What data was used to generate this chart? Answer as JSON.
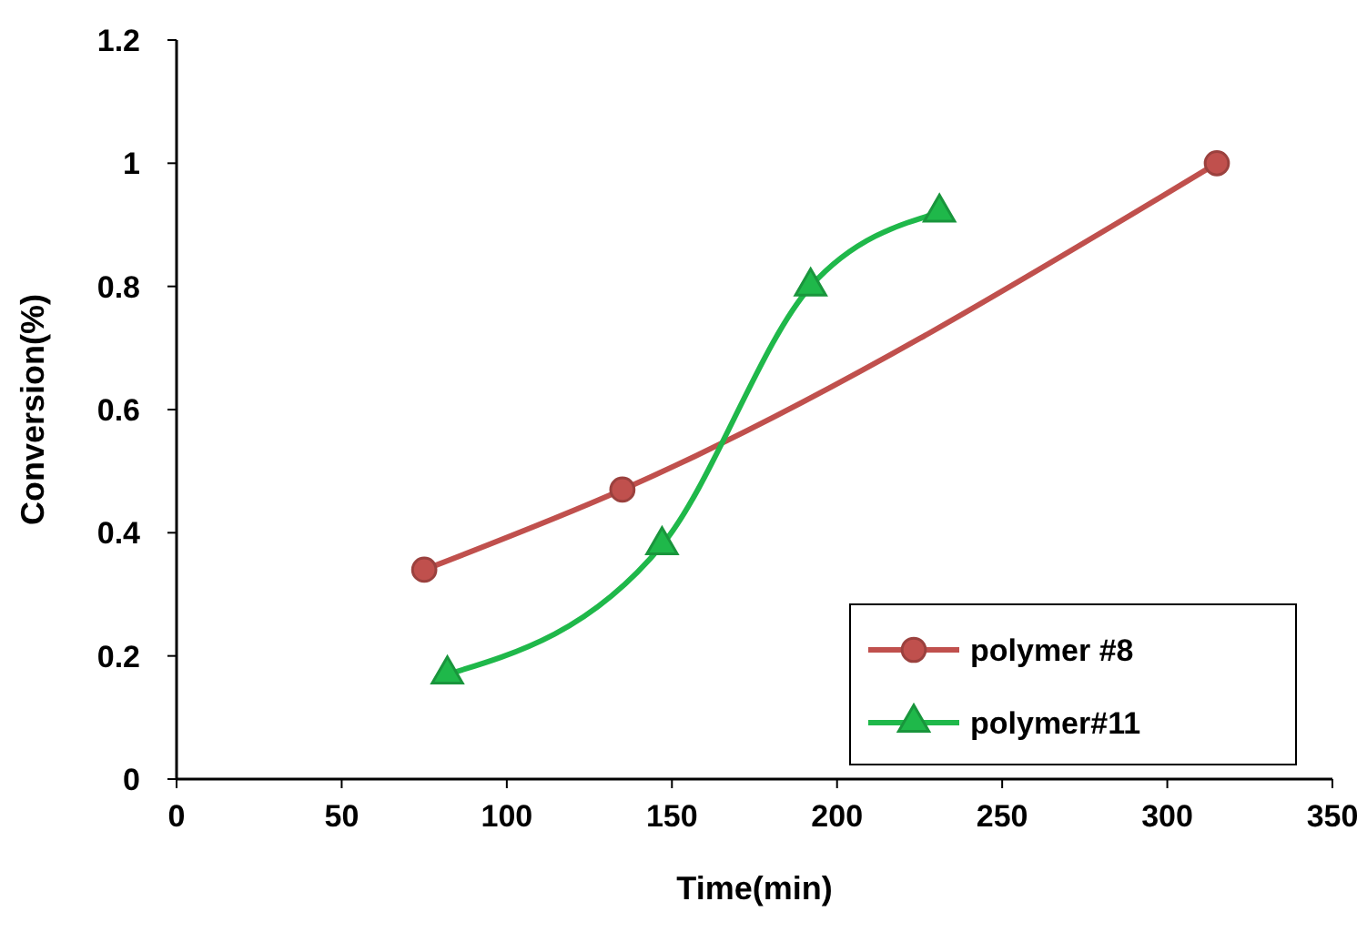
{
  "chart_data": {
    "type": "line",
    "xlabel": "Time(min)",
    "ylabel": "Conversion(%)",
    "xlim": [
      0,
      350
    ],
    "xticks": [
      0,
      50,
      100,
      150,
      200,
      250,
      300,
      350
    ],
    "ylim": [
      0,
      1.2
    ],
    "yticks": [
      0,
      0.2,
      0.4,
      0.6,
      0.8,
      1,
      1.2
    ],
    "grid": false,
    "legend": "bottom right",
    "line_style": "solid",
    "series": [
      {
        "name": "polymer #8",
        "color": "#c0504d",
        "marker": "circle",
        "x": [
          75,
          135,
          315
        ],
        "values": [
          0.34,
          0.47,
          1.0
        ]
      },
      {
        "name": "polymer#11",
        "color": "#1fb84a",
        "marker": "triangle",
        "x": [
          82,
          147,
          192,
          231
        ],
        "values": [
          0.17,
          0.38,
          0.8,
          0.92
        ]
      }
    ]
  }
}
